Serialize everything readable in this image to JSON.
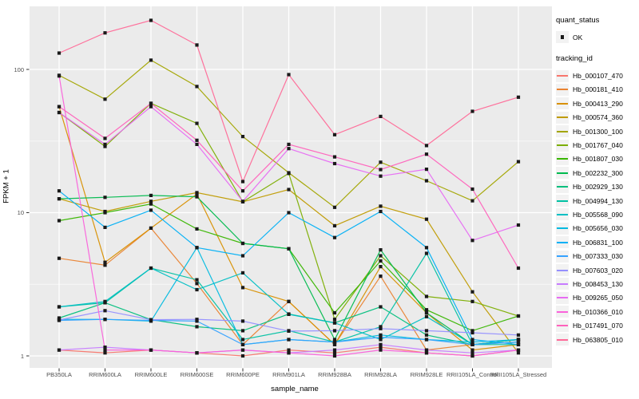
{
  "chart_data": {
    "type": "line",
    "title": "",
    "xlabel": "sample_name",
    "ylabel": "FPKM + 1",
    "y_scale": "log10",
    "yticks": [
      1,
      10,
      100
    ],
    "ytick_labels": [
      "1",
      "10",
      "100"
    ],
    "y_minor_gridlines": [
      3.162,
      31.62
    ],
    "ylim_px_range_note": "log axis, 1 decade = 179.5px",
    "grid": true,
    "legend_position": "right",
    "panel_bg": "#ebebeb",
    "gridline_color": "#ffffff",
    "marker": {
      "shape": "square",
      "color": "#1a1a1a",
      "meaning": "quant_status OK"
    },
    "categories": [
      "PB350LA",
      "RRIM600LA",
      "RRIM600LE",
      "RRIM600SE",
      "RRIM600PE",
      "RRIM901LA",
      "RRIM928BA",
      "RRIM928LA",
      "RRIM928LE",
      "RRII105LA_Control",
      "RRII105LA_Stressed"
    ],
    "series": [
      {
        "name": "Hb_000107_470",
        "color": "#F8766D",
        "values": [
          1.1,
          1.05,
          1.1,
          1.05,
          1.0,
          1.1,
          1.05,
          1.15,
          1.05,
          1.0,
          1.1
        ]
      },
      {
        "name": "Hb_000181_410",
        "color": "#EA8331",
        "values": [
          4.8,
          4.3,
          7.8,
          3.2,
          1.2,
          2.4,
          1.2,
          3.6,
          1.1,
          1.2,
          1.3
        ]
      },
      {
        "name": "Hb_000413_290",
        "color": "#D89000",
        "values": [
          55,
          4.5,
          7.8,
          13.5,
          3.0,
          2.4,
          1.2,
          4.2,
          2.0,
          1.1,
          1.2
        ]
      },
      {
        "name": "Hb_000574_360",
        "color": "#C09B00",
        "values": [
          12.5,
          10.2,
          12.0,
          13.8,
          11.9,
          14.5,
          8.1,
          11.1,
          9.0,
          2.8,
          1.05
        ]
      },
      {
        "name": "Hb_001300_100",
        "color": "#A3A500",
        "values": [
          91,
          62,
          116,
          76,
          34,
          19,
          10.9,
          22.5,
          16.7,
          12.1,
          22.7
        ]
      },
      {
        "name": "Hb_001767_040",
        "color": "#7CAE00",
        "values": [
          50,
          29,
          58,
          42,
          11.9,
          18.8,
          1.8,
          5.0,
          2.6,
          2.4,
          1.9
        ]
      },
      {
        "name": "Hb_001807_030",
        "color": "#39B600",
        "values": [
          8.8,
          10,
          11.5,
          7.7,
          6.1,
          5.6,
          2.0,
          4.6,
          2.1,
          1.5,
          1.9
        ]
      },
      {
        "name": "Hb_002232_300",
        "color": "#00BB4E",
        "values": [
          12.5,
          12.8,
          13.2,
          12.9,
          6.1,
          5.6,
          1.3,
          5.5,
          2.0,
          1.2,
          1.3
        ]
      },
      {
        "name": "Hb_002929_130",
        "color": "#00BF7D",
        "values": [
          1.84,
          2.35,
          1.79,
          1.6,
          1.5,
          1.96,
          1.7,
          2.2,
          1.4,
          1.2,
          1.25
        ]
      },
      {
        "name": "Hb_004994_130",
        "color": "#00C1A3",
        "values": [
          2.2,
          2.35,
          4.1,
          3.4,
          1.3,
          1.5,
          1.25,
          1.6,
          5.2,
          1.2,
          1.2
        ]
      },
      {
        "name": "Hb_005568_090",
        "color": "#00BFC4",
        "values": [
          2.2,
          2.4,
          4.1,
          2.9,
          3.8,
          1.95,
          1.7,
          1.3,
          1.88,
          1.2,
          1.3
        ]
      },
      {
        "name": "Hb_005656_030",
        "color": "#00BAE0",
        "values": [
          1.8,
          1.8,
          1.75,
          5.7,
          1.2,
          1.3,
          1.25,
          1.4,
          1.3,
          1.25,
          1.3
        ]
      },
      {
        "name": "Hb_006831_100",
        "color": "#00B0F6",
        "values": [
          14.2,
          7.9,
          10.4,
          5.7,
          5.0,
          10.0,
          6.7,
          10.2,
          5.7,
          1.3,
          1.2
        ]
      },
      {
        "name": "Hb_007333_030",
        "color": "#35A2FF",
        "values": [
          1.77,
          1.8,
          1.77,
          1.75,
          1.2,
          1.3,
          1.25,
          1.35,
          1.3,
          1.2,
          1.25
        ]
      },
      {
        "name": "Hb_007603_020",
        "color": "#9590FF",
        "values": [
          1.78,
          2.07,
          1.79,
          1.8,
          1.75,
          1.49,
          1.5,
          1.55,
          1.5,
          1.45,
          1.4
        ]
      },
      {
        "name": "Hb_008453_130",
        "color": "#C77CFF",
        "values": [
          1.1,
          1.15,
          1.1,
          1.05,
          1.1,
          1.05,
          1.1,
          1.2,
          1.1,
          1.05,
          1.1
        ]
      },
      {
        "name": "Hb_009265_050",
        "color": "#E76BF3",
        "values": [
          50,
          30,
          55,
          30,
          12,
          28,
          22,
          18,
          20.1,
          6.4,
          8.2
        ]
      },
      {
        "name": "Hb_010366_010",
        "color": "#FA62DB",
        "values": [
          90,
          1.1,
          1.1,
          1.05,
          1.1,
          1.05,
          1.0,
          1.1,
          1.05,
          1.0,
          1.1
        ]
      },
      {
        "name": "Hb_017491_070",
        "color": "#FF62BC",
        "values": [
          55,
          33,
          58,
          32,
          14.2,
          30,
          24.5,
          20,
          25.6,
          14.6,
          4.1
        ]
      },
      {
        "name": "Hb_063805_010",
        "color": "#FF6A98",
        "values": [
          130,
          180,
          220,
          148,
          16.5,
          92,
          35,
          47,
          29.4,
          51,
          64
        ]
      }
    ]
  },
  "legend": {
    "quant_status_title": "quant_status",
    "quant_status_items": [
      {
        "label": "OK"
      }
    ],
    "tracking_id_title": "tracking_id"
  }
}
